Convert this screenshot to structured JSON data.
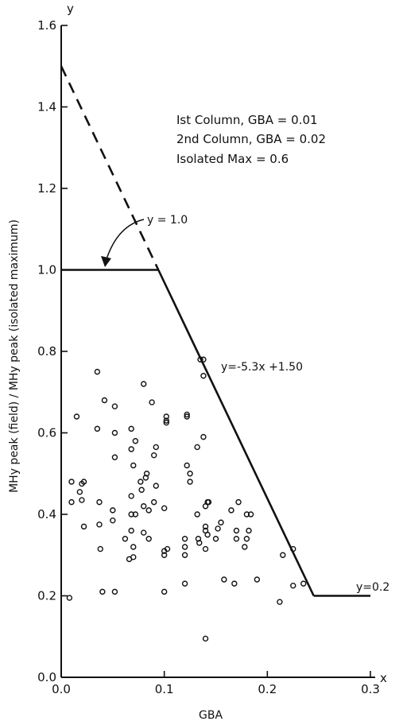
{
  "chart_data": {
    "type": "scatter",
    "xlabel": "GBA",
    "ylabel": "MHy peak (field) / MHy peak (isolated maximum)",
    "x_axis_var": "x",
    "y_axis_var": "y",
    "xlim": [
      0.0,
      0.3
    ],
    "ylim": [
      0.0,
      1.6
    ],
    "x_ticks": [
      "0.0",
      "0.1",
      "0.2",
      "0.3"
    ],
    "y_ticks": [
      "0.0",
      "0.2",
      "0.4",
      "0.6",
      "0.8",
      "1.0",
      "1.2",
      "1.4",
      "1.6"
    ],
    "annotations": [
      "Ist Column, GBA = 0.01",
      "2nd Column, GBA = 0.02",
      "Isolated Max = 0.6"
    ],
    "lines": [
      {
        "style": "dashed",
        "points": [
          [
            0.0,
            1.5
          ],
          [
            0.0943,
            1.0
          ]
        ]
      },
      {
        "style": "solid",
        "points": [
          [
            0.0,
            1.0
          ],
          [
            0.0943,
            1.0
          ]
        ],
        "label": "y = 1.0"
      },
      {
        "style": "solid",
        "points": [
          [
            0.0943,
            1.0
          ],
          [
            0.245,
            0.2
          ]
        ],
        "label": "y=-5.3x +1.50"
      },
      {
        "style": "solid",
        "points": [
          [
            0.245,
            0.2
          ],
          [
            0.3,
            0.2
          ]
        ],
        "label": "y=0.2"
      }
    ],
    "series": [
      {
        "x": [
          0.008,
          0.01,
          0.01,
          0.015,
          0.018,
          0.02,
          0.02,
          0.022,
          0.022,
          0.035,
          0.035,
          0.037,
          0.037,
          0.038,
          0.04,
          0.042,
          0.05,
          0.05,
          0.052,
          0.052,
          0.052,
          0.052,
          0.062,
          0.066,
          0.068,
          0.068,
          0.068,
          0.068,
          0.068,
          0.07,
          0.07,
          0.07,
          0.072,
          0.072,
          0.077,
          0.078,
          0.08,
          0.08,
          0.08,
          0.082,
          0.083,
          0.085,
          0.085,
          0.088,
          0.09,
          0.09,
          0.092,
          0.092,
          0.1,
          0.1,
          0.1,
          0.1,
          0.102,
          0.102,
          0.102,
          0.103,
          0.12,
          0.12,
          0.12,
          0.12,
          0.122,
          0.122,
          0.122,
          0.125,
          0.125,
          0.132,
          0.132,
          0.133,
          0.134,
          0.135,
          0.138,
          0.138,
          0.138,
          0.14,
          0.14,
          0.14,
          0.14,
          0.14,
          0.142,
          0.142,
          0.143,
          0.15,
          0.152,
          0.155,
          0.158,
          0.165,
          0.168,
          0.17,
          0.17,
          0.172,
          0.178,
          0.18,
          0.18,
          0.182,
          0.184,
          0.19,
          0.212,
          0.215,
          0.225,
          0.225,
          0.235
        ],
        "y": [
          0.195,
          0.48,
          0.43,
          0.64,
          0.455,
          0.435,
          0.475,
          0.37,
          0.48,
          0.75,
          0.61,
          0.43,
          0.375,
          0.315,
          0.21,
          0.68,
          0.41,
          0.385,
          0.21,
          0.54,
          0.665,
          0.6,
          0.34,
          0.29,
          0.36,
          0.4,
          0.445,
          0.56,
          0.61,
          0.295,
          0.32,
          0.52,
          0.4,
          0.58,
          0.48,
          0.46,
          0.355,
          0.42,
          0.72,
          0.49,
          0.5,
          0.34,
          0.41,
          0.675,
          0.43,
          0.545,
          0.47,
          0.565,
          0.21,
          0.3,
          0.31,
          0.415,
          0.63,
          0.64,
          0.625,
          0.315,
          0.23,
          0.3,
          0.32,
          0.34,
          0.52,
          0.64,
          0.645,
          0.48,
          0.5,
          0.565,
          0.4,
          0.34,
          0.33,
          0.78,
          0.78,
          0.74,
          0.59,
          0.315,
          0.36,
          0.37,
          0.42,
          0.095,
          0.43,
          0.35,
          0.43,
          0.34,
          0.365,
          0.38,
          0.24,
          0.41,
          0.23,
          0.34,
          0.36,
          0.43,
          0.32,
          0.4,
          0.34,
          0.36,
          0.4,
          0.24,
          0.185,
          0.3,
          0.315,
          0.225,
          0.23
        ]
      }
    ]
  }
}
